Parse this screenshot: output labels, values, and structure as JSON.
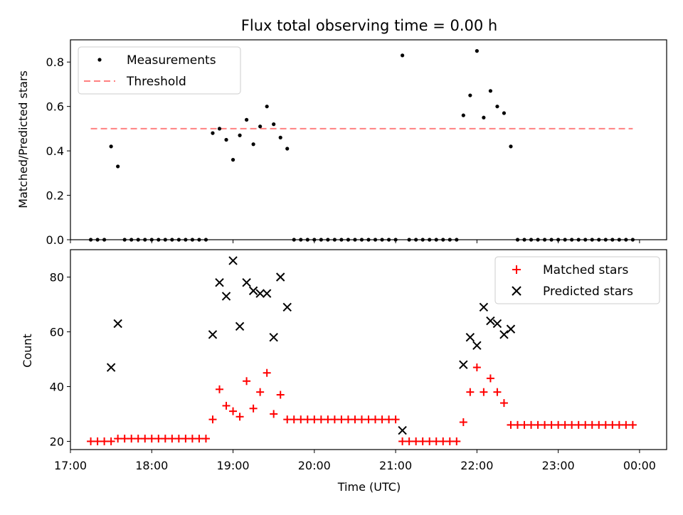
{
  "chart_data": [
    {
      "type": "scatter",
      "title": "Flux total observing time = 0.00 h",
      "xlabel": "",
      "ylabel": "Matched/Predicted stars",
      "xlim": [
        "17:00",
        "00:20"
      ],
      "ylim": [
        0,
        0.9
      ],
      "yticks": [
        "0.0",
        "0.2",
        "0.4",
        "0.6",
        "0.8"
      ],
      "legend_position": "top-left",
      "threshold": {
        "name": "Threshold",
        "value": 0.5,
        "x_start": "17:15",
        "x_end": "23:55",
        "color": "#ff8080"
      },
      "series": [
        {
          "name": "Measurements",
          "color": "#000000",
          "points": [
            [
              "17:15",
              0
            ],
            [
              "17:20",
              0
            ],
            [
              "17:25",
              0
            ],
            [
              "17:30",
              0.42
            ],
            [
              "17:35",
              0.33
            ],
            [
              "17:40",
              0
            ],
            [
              "17:45",
              0
            ],
            [
              "17:50",
              0
            ],
            [
              "17:55",
              0
            ],
            [
              "18:00",
              0
            ],
            [
              "18:05",
              0
            ],
            [
              "18:10",
              0
            ],
            [
              "18:15",
              0
            ],
            [
              "18:20",
              0
            ],
            [
              "18:25",
              0
            ],
            [
              "18:30",
              0
            ],
            [
              "18:35",
              0
            ],
            [
              "18:40",
              0
            ],
            [
              "18:45",
              0.48
            ],
            [
              "18:50",
              0.5
            ],
            [
              "18:55",
              0.45
            ],
            [
              "19:00",
              0.36
            ],
            [
              "19:05",
              0.47
            ],
            [
              "19:10",
              0.54
            ],
            [
              "19:15",
              0.43
            ],
            [
              "19:20",
              0.51
            ],
            [
              "19:25",
              0.6
            ],
            [
              "19:30",
              0.52
            ],
            [
              "19:35",
              0.46
            ],
            [
              "19:40",
              0.41
            ],
            [
              "19:45",
              0
            ],
            [
              "19:50",
              0
            ],
            [
              "19:55",
              0
            ],
            [
              "20:00",
              0
            ],
            [
              "20:05",
              0
            ],
            [
              "20:10",
              0
            ],
            [
              "20:15",
              0
            ],
            [
              "20:20",
              0
            ],
            [
              "20:25",
              0
            ],
            [
              "20:30",
              0
            ],
            [
              "20:35",
              0
            ],
            [
              "20:40",
              0
            ],
            [
              "20:45",
              0
            ],
            [
              "20:50",
              0
            ],
            [
              "20:55",
              0
            ],
            [
              "21:00",
              0
            ],
            [
              "21:05",
              0.83
            ],
            [
              "21:10",
              0
            ],
            [
              "21:15",
              0
            ],
            [
              "21:20",
              0
            ],
            [
              "21:25",
              0
            ],
            [
              "21:30",
              0
            ],
            [
              "21:35",
              0
            ],
            [
              "21:40",
              0
            ],
            [
              "21:45",
              0
            ],
            [
              "21:50",
              0.56
            ],
            [
              "21:55",
              0.65
            ],
            [
              "22:00",
              0.85
            ],
            [
              "22:05",
              0.55
            ],
            [
              "22:10",
              0.67
            ],
            [
              "22:15",
              0.6
            ],
            [
              "22:20",
              0.57
            ],
            [
              "22:25",
              0.42
            ],
            [
              "22:30",
              0
            ],
            [
              "22:35",
              0
            ],
            [
              "22:40",
              0
            ],
            [
              "22:45",
              0
            ],
            [
              "22:50",
              0
            ],
            [
              "22:55",
              0
            ],
            [
              "23:00",
              0
            ],
            [
              "23:05",
              0
            ],
            [
              "23:10",
              0
            ],
            [
              "23:15",
              0
            ],
            [
              "23:20",
              0
            ],
            [
              "23:25",
              0
            ],
            [
              "23:30",
              0
            ],
            [
              "23:35",
              0
            ],
            [
              "23:40",
              0
            ],
            [
              "23:45",
              0
            ],
            [
              "23:50",
              0
            ],
            [
              "23:55",
              0
            ]
          ]
        }
      ]
    },
    {
      "type": "scatter",
      "title": "",
      "xlabel": "Time (UTC)",
      "ylabel": "Count",
      "xlim": [
        "17:00",
        "00:20"
      ],
      "ylim": [
        17,
        90
      ],
      "yticks": [
        "20",
        "40",
        "60",
        "80"
      ],
      "xticks": [
        "17:00",
        "18:00",
        "19:00",
        "20:00",
        "21:00",
        "22:00",
        "23:00",
        "00:00"
      ],
      "legend_position": "top-right",
      "series": [
        {
          "name": "Matched stars",
          "marker": "plus",
          "color": "#ff0000",
          "points": [
            [
              "17:15",
              20
            ],
            [
              "17:20",
              20
            ],
            [
              "17:25",
              20
            ],
            [
              "17:30",
              20
            ],
            [
              "17:35",
              21
            ],
            [
              "17:40",
              21
            ],
            [
              "17:45",
              21
            ],
            [
              "17:50",
              21
            ],
            [
              "17:55",
              21
            ],
            [
              "18:00",
              21
            ],
            [
              "18:05",
              21
            ],
            [
              "18:10",
              21
            ],
            [
              "18:15",
              21
            ],
            [
              "18:20",
              21
            ],
            [
              "18:25",
              21
            ],
            [
              "18:30",
              21
            ],
            [
              "18:35",
              21
            ],
            [
              "18:40",
              21
            ],
            [
              "18:45",
              28
            ],
            [
              "18:50",
              39
            ],
            [
              "18:55",
              33
            ],
            [
              "19:00",
              31
            ],
            [
              "19:05",
              29
            ],
            [
              "19:10",
              42
            ],
            [
              "19:15",
              32
            ],
            [
              "19:20",
              38
            ],
            [
              "19:25",
              45
            ],
            [
              "19:30",
              30
            ],
            [
              "19:35",
              37
            ],
            [
              "19:40",
              28
            ],
            [
              "19:45",
              28
            ],
            [
              "19:50",
              28
            ],
            [
              "19:55",
              28
            ],
            [
              "20:00",
              28
            ],
            [
              "20:05",
              28
            ],
            [
              "20:10",
              28
            ],
            [
              "20:15",
              28
            ],
            [
              "20:20",
              28
            ],
            [
              "20:25",
              28
            ],
            [
              "20:30",
              28
            ],
            [
              "20:35",
              28
            ],
            [
              "20:40",
              28
            ],
            [
              "20:45",
              28
            ],
            [
              "20:50",
              28
            ],
            [
              "20:55",
              28
            ],
            [
              "21:00",
              28
            ],
            [
              "21:05",
              20
            ],
            [
              "21:10",
              20
            ],
            [
              "21:15",
              20
            ],
            [
              "21:20",
              20
            ],
            [
              "21:25",
              20
            ],
            [
              "21:30",
              20
            ],
            [
              "21:35",
              20
            ],
            [
              "21:40",
              20
            ],
            [
              "21:45",
              20
            ],
            [
              "21:50",
              27
            ],
            [
              "21:55",
              38
            ],
            [
              "22:00",
              47
            ],
            [
              "22:05",
              38
            ],
            [
              "22:10",
              43
            ],
            [
              "22:15",
              38
            ],
            [
              "22:20",
              34
            ],
            [
              "22:25",
              26
            ],
            [
              "22:30",
              26
            ],
            [
              "22:35",
              26
            ],
            [
              "22:40",
              26
            ],
            [
              "22:45",
              26
            ],
            [
              "22:50",
              26
            ],
            [
              "22:55",
              26
            ],
            [
              "23:00",
              26
            ],
            [
              "23:05",
              26
            ],
            [
              "23:10",
              26
            ],
            [
              "23:15",
              26
            ],
            [
              "23:20",
              26
            ],
            [
              "23:25",
              26
            ],
            [
              "23:30",
              26
            ],
            [
              "23:35",
              26
            ],
            [
              "23:40",
              26
            ],
            [
              "23:45",
              26
            ],
            [
              "23:50",
              26
            ],
            [
              "23:55",
              26
            ]
          ]
        },
        {
          "name": "Predicted stars",
          "marker": "x",
          "color": "#000000",
          "points": [
            [
              "17:30",
              47
            ],
            [
              "17:35",
              63
            ],
            [
              "18:45",
              59
            ],
            [
              "18:50",
              78
            ],
            [
              "18:55",
              73
            ],
            [
              "19:00",
              86
            ],
            [
              "19:05",
              62
            ],
            [
              "19:10",
              78
            ],
            [
              "19:15",
              75
            ],
            [
              "19:20",
              74
            ],
            [
              "19:25",
              74
            ],
            [
              "19:30",
              58
            ],
            [
              "19:35",
              80
            ],
            [
              "19:40",
              69
            ],
            [
              "21:05",
              24
            ],
            [
              "21:50",
              48
            ],
            [
              "21:55",
              58
            ],
            [
              "22:00",
              55
            ],
            [
              "22:05",
              69
            ],
            [
              "22:10",
              64
            ],
            [
              "22:15",
              63
            ],
            [
              "22:20",
              59
            ],
            [
              "22:25",
              61
            ]
          ]
        }
      ]
    }
  ]
}
